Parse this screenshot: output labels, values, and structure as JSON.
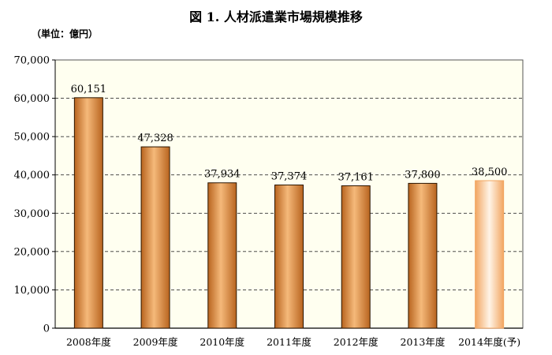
{
  "chart_data": {
    "type": "bar",
    "title": "図 1.  人材派遣業市場規模推移",
    "unit_label": "（単位：億円）",
    "categories": [
      "2008年度",
      "2009年度",
      "2010年度",
      "2011年度",
      "2012年度",
      "2013年度",
      "2014年度(予)"
    ],
    "values": [
      60151,
      47328,
      37934,
      37374,
      37161,
      37800,
      38500
    ],
    "data_labels": [
      "60,151",
      "47,328",
      "37,934",
      "37,374",
      "37,161",
      "37,800",
      "38,500"
    ],
    "y_ticks": [
      "0",
      "10,000",
      "20,000",
      "30,000",
      "40,000",
      "50,000",
      "60,000",
      "70,000"
    ],
    "ylim": [
      0,
      70000
    ],
    "grid": true,
    "projected_index": 6,
    "colors": {
      "bar_dark": "#b8641f",
      "bar_mid": "#f5b97a",
      "bar_light": "#fde3c4",
      "projected_edge": "#f2a662",
      "projected_fill": "#fff4e6",
      "plot_bg": "#fffff0",
      "grid": "#333333"
    }
  }
}
